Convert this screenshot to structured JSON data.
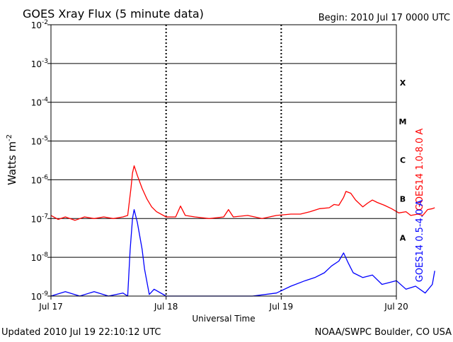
{
  "chart_data": {
    "type": "line",
    "title": "GOES Xray Flux (5 minute data)",
    "begin_label": "Begin:  2010 Jul 17 0000 UTC",
    "xlabel": "Universal Time",
    "ylabel": "Watts m",
    "ylabel_superscript": "-2",
    "y_scale": "log",
    "ylim": [
      1e-09,
      0.01
    ],
    "y_ticks": [
      {
        "base": "10",
        "exp": "-9",
        "value": 1e-09
      },
      {
        "base": "10",
        "exp": "-8",
        "value": 1e-08
      },
      {
        "base": "10",
        "exp": "-7",
        "value": 1e-07
      },
      {
        "base": "10",
        "exp": "-6",
        "value": 1e-06
      },
      {
        "base": "10",
        "exp": "-5",
        "value": 1e-05
      },
      {
        "base": "10",
        "exp": "-4",
        "value": 0.0001
      },
      {
        "base": "10",
        "exp": "-3",
        "value": 0.001
      },
      {
        "base": "10",
        "exp": "-2",
        "value": 0.01
      }
    ],
    "xlim": [
      "2010-07-17",
      "2010-07-20"
    ],
    "x_ticks": [
      {
        "label": "Jul 17",
        "date": "2010-07-17"
      },
      {
        "label": "Jul 18",
        "date": "2010-07-18"
      },
      {
        "label": "Jul 19",
        "date": "2010-07-19"
      },
      {
        "label": "Jul 20",
        "date": "2010-07-20"
      }
    ],
    "flare_classes": [
      {
        "label": "X",
        "value": 0.00032
      },
      {
        "label": "M",
        "value": 3.2e-05
      },
      {
        "label": "C",
        "value": 3.2e-06
      },
      {
        "label": "B",
        "value": 3.2e-07
      },
      {
        "label": "A",
        "value": 3.2e-08
      }
    ],
    "grid": true,
    "series": [
      {
        "name": "GOES14 1.0-8.0 A",
        "color": "#ff0000",
        "points": [
          [
            "2010-07-17 00:00",
            1.2e-07
          ],
          [
            "2010-07-17 01:30",
            9.5e-08
          ],
          [
            "2010-07-17 03:00",
            1.1e-07
          ],
          [
            "2010-07-17 05:00",
            9e-08
          ],
          [
            "2010-07-17 07:00",
            1.1e-07
          ],
          [
            "2010-07-17 09:00",
            1e-07
          ],
          [
            "2010-07-17 11:00",
            1.1e-07
          ],
          [
            "2010-07-17 13:00",
            1e-07
          ],
          [
            "2010-07-17 15:00",
            1.1e-07
          ],
          [
            "2010-07-17 16:00",
            1.2e-07
          ],
          [
            "2010-07-17 16:40",
            6e-07
          ],
          [
            "2010-07-17 17:00",
            1.5e-06
          ],
          [
            "2010-07-17 17:20",
            2.3e-06
          ],
          [
            "2010-07-17 18:00",
            1.3e-06
          ],
          [
            "2010-07-17 19:00",
            6e-07
          ],
          [
            "2010-07-17 20:00",
            3.2e-07
          ],
          [
            "2010-07-17 21:00",
            2e-07
          ],
          [
            "2010-07-17 22:00",
            1.5e-07
          ],
          [
            "2010-07-18 00:00",
            1.1e-07
          ],
          [
            "2010-07-18 02:00",
            1.1e-07
          ],
          [
            "2010-07-18 03:00",
            2.1e-07
          ],
          [
            "2010-07-18 04:00",
            1.2e-07
          ],
          [
            "2010-07-18 06:00",
            1.1e-07
          ],
          [
            "2010-07-18 09:00",
            1e-07
          ],
          [
            "2010-07-18 12:00",
            1.1e-07
          ],
          [
            "2010-07-18 13:00",
            1.7e-07
          ],
          [
            "2010-07-18 14:00",
            1.1e-07
          ],
          [
            "2010-07-18 17:00",
            1.2e-07
          ],
          [
            "2010-07-18 20:00",
            1e-07
          ],
          [
            "2010-07-18 23:00",
            1.2e-07
          ],
          [
            "2010-07-19 02:00",
            1.3e-07
          ],
          [
            "2010-07-19 04:00",
            1.3e-07
          ],
          [
            "2010-07-19 06:00",
            1.5e-07
          ],
          [
            "2010-07-19 08:00",
            1.8e-07
          ],
          [
            "2010-07-19 10:00",
            1.9e-07
          ],
          [
            "2010-07-19 11:00",
            2.3e-07
          ],
          [
            "2010-07-19 12:00",
            2.2e-07
          ],
          [
            "2010-07-19 13:00",
            3.5e-07
          ],
          [
            "2010-07-19 13:30",
            5e-07
          ],
          [
            "2010-07-19 14:30",
            4.5e-07
          ],
          [
            "2010-07-19 15:30",
            3e-07
          ],
          [
            "2010-07-19 17:00",
            2e-07
          ],
          [
            "2010-07-19 18:00",
            2.5e-07
          ],
          [
            "2010-07-19 19:00",
            3e-07
          ],
          [
            "2010-07-19 20:00",
            2.6e-07
          ],
          [
            "2010-07-19 21:30",
            2.2e-07
          ],
          [
            "2010-07-19 23:00",
            1.8e-07
          ],
          [
            "2010-07-20 00:30",
            1.4e-07
          ],
          [
            "2010-07-20 02:00",
            1.5e-07
          ],
          [
            "2010-07-20 03:00",
            1.2e-07
          ],
          [
            "2010-07-20 04:30",
            1.3e-07
          ],
          [
            "2010-07-20 05:30",
            1.2e-07
          ],
          [
            "2010-07-20 06:30",
            1.7e-07
          ],
          [
            "2010-07-20 07:30",
            1.8e-07
          ],
          [
            "2010-07-20 08:00",
            1.9e-07
          ]
        ]
      },
      {
        "name": "GOES14 0.5-4.0 A",
        "color": "#0000ff",
        "points": [
          [
            "2010-07-17 00:00",
            1e-09
          ],
          [
            "2010-07-17 03:00",
            1.3e-09
          ],
          [
            "2010-07-17 06:00",
            1e-09
          ],
          [
            "2010-07-17 09:00",
            1.3e-09
          ],
          [
            "2010-07-17 12:00",
            1e-09
          ],
          [
            "2010-07-17 15:00",
            1.2e-09
          ],
          [
            "2010-07-17 16:00",
            1e-09
          ],
          [
            "2010-07-17 16:30",
            1.5e-08
          ],
          [
            "2010-07-17 17:00",
            1e-07
          ],
          [
            "2010-07-17 17:20",
            1.7e-07
          ],
          [
            "2010-07-17 18:00",
            8e-08
          ],
          [
            "2010-07-17 19:00",
            1.6e-08
          ],
          [
            "2010-07-17 19:30",
            5e-09
          ],
          [
            "2010-07-17 20:30",
            1.1e-09
          ],
          [
            "2010-07-17 21:30",
            1.5e-09
          ],
          [
            "2010-07-18 00:00",
            1e-09
          ],
          [
            "2010-07-18 06:00",
            1e-09
          ],
          [
            "2010-07-18 12:00",
            1e-09
          ],
          [
            "2010-07-18 18:00",
            1e-09
          ],
          [
            "2010-07-18 23:00",
            1.2e-09
          ],
          [
            "2010-07-19 02:00",
            1.8e-09
          ],
          [
            "2010-07-19 05:00",
            2.5e-09
          ],
          [
            "2010-07-19 07:00",
            3e-09
          ],
          [
            "2010-07-19 09:00",
            4e-09
          ],
          [
            "2010-07-19 10:30",
            6e-09
          ],
          [
            "2010-07-19 12:00",
            8e-09
          ],
          [
            "2010-07-19 13:00",
            1.3e-08
          ],
          [
            "2010-07-19 14:00",
            7e-09
          ],
          [
            "2010-07-19 15:00",
            4e-09
          ],
          [
            "2010-07-19 17:00",
            3e-09
          ],
          [
            "2010-07-19 19:00",
            3.5e-09
          ],
          [
            "2010-07-19 21:00",
            2e-09
          ],
          [
            "2010-07-20 00:00",
            2.5e-09
          ],
          [
            "2010-07-20 02:00",
            1.5e-09
          ],
          [
            "2010-07-20 04:00",
            1.8e-09
          ],
          [
            "2010-07-20 06:00",
            1.2e-09
          ],
          [
            "2010-07-20 07:30",
            2e-09
          ],
          [
            "2010-07-20 08:00",
            4.5e-09
          ]
        ]
      }
    ]
  },
  "footer": {
    "updated": "Updated 2010 Jul 19 22:10:12 UTC",
    "credit": "NOAA/SWPC Boulder, CO USA"
  }
}
